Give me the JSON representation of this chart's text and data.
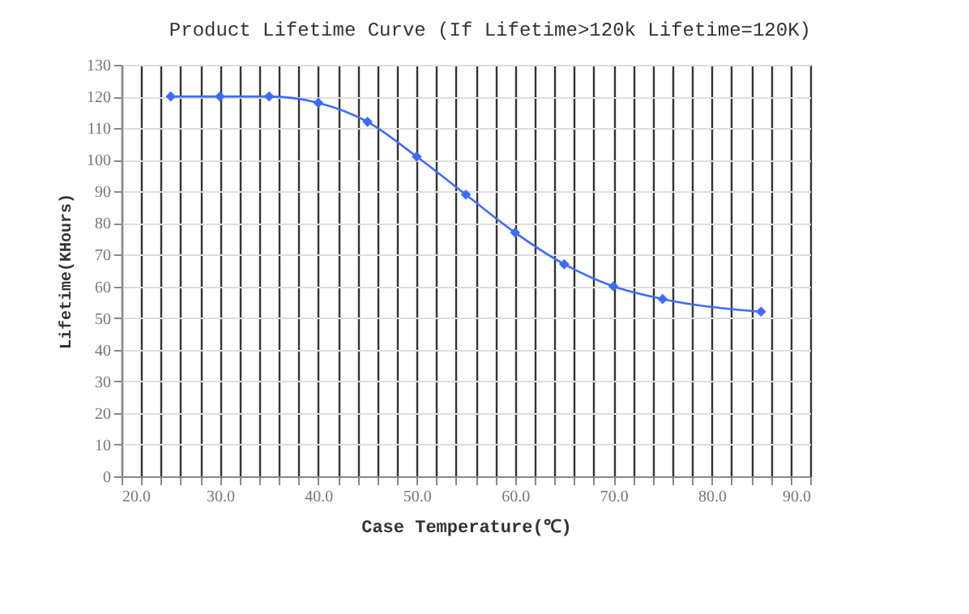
{
  "chart_data": {
    "type": "line",
    "title": "Product Lifetime Curve (If Lifetime>120k Lifetime=120K)",
    "xlabel": "Case Temperature(℃)",
    "ylabel": "Lifetime(KHours)",
    "x": [
      25,
      30,
      35,
      40,
      45,
      50,
      55,
      60,
      65,
      70,
      75,
      85
    ],
    "series": [
      {
        "color": "#3d6bff",
        "values": [
          120,
          120,
          120,
          118,
          112,
          101,
          89,
          77,
          67,
          60,
          56,
          52
        ]
      }
    ],
    "xlim": [
      20,
      90
    ],
    "xticks": [
      {
        "value": 20,
        "label": "20.0"
      },
      {
        "value": 22,
        "label": null
      },
      {
        "value": 24,
        "label": null
      },
      {
        "value": 26,
        "label": null
      },
      {
        "value": 28,
        "label": null
      },
      {
        "value": 30,
        "label": "30.0"
      },
      {
        "value": 32,
        "label": null
      },
      {
        "value": 34,
        "label": null
      },
      {
        "value": 36,
        "label": null
      },
      {
        "value": 38,
        "label": null
      },
      {
        "value": 40,
        "label": "40.0"
      },
      {
        "value": 42,
        "label": null
      },
      {
        "value": 44,
        "label": null
      },
      {
        "value": 46,
        "label": null
      },
      {
        "value": 48,
        "label": null
      },
      {
        "value": 50,
        "label": "50.0"
      },
      {
        "value": 52,
        "label": null
      },
      {
        "value": 54,
        "label": null
      },
      {
        "value": 56,
        "label": null
      },
      {
        "value": 58,
        "label": null
      },
      {
        "value": 60,
        "label": "60.0"
      },
      {
        "value": 62,
        "label": null
      },
      {
        "value": 64,
        "label": null
      },
      {
        "value": 66,
        "label": null
      },
      {
        "value": 68,
        "label": null
      },
      {
        "value": 70,
        "label": "70.0"
      },
      {
        "value": 72,
        "label": null
      },
      {
        "value": 74,
        "label": null
      },
      {
        "value": 76,
        "label": null
      },
      {
        "value": 78,
        "label": null
      },
      {
        "value": 80,
        "label": "80.0"
      },
      {
        "value": 82,
        "label": null
      },
      {
        "value": 84,
        "label": null
      },
      {
        "value": 86,
        "label": null
      },
      {
        "value": 88,
        "label": null
      },
      {
        "value": 90,
        "label": "90.0"
      }
    ],
    "ylim": [
      0,
      130
    ],
    "yticks": [
      0,
      10,
      20,
      30,
      40,
      50,
      60,
      70,
      80,
      90,
      100,
      110,
      120,
      130
    ],
    "grid": true,
    "marker": "diamond",
    "line_style": "solid"
  }
}
